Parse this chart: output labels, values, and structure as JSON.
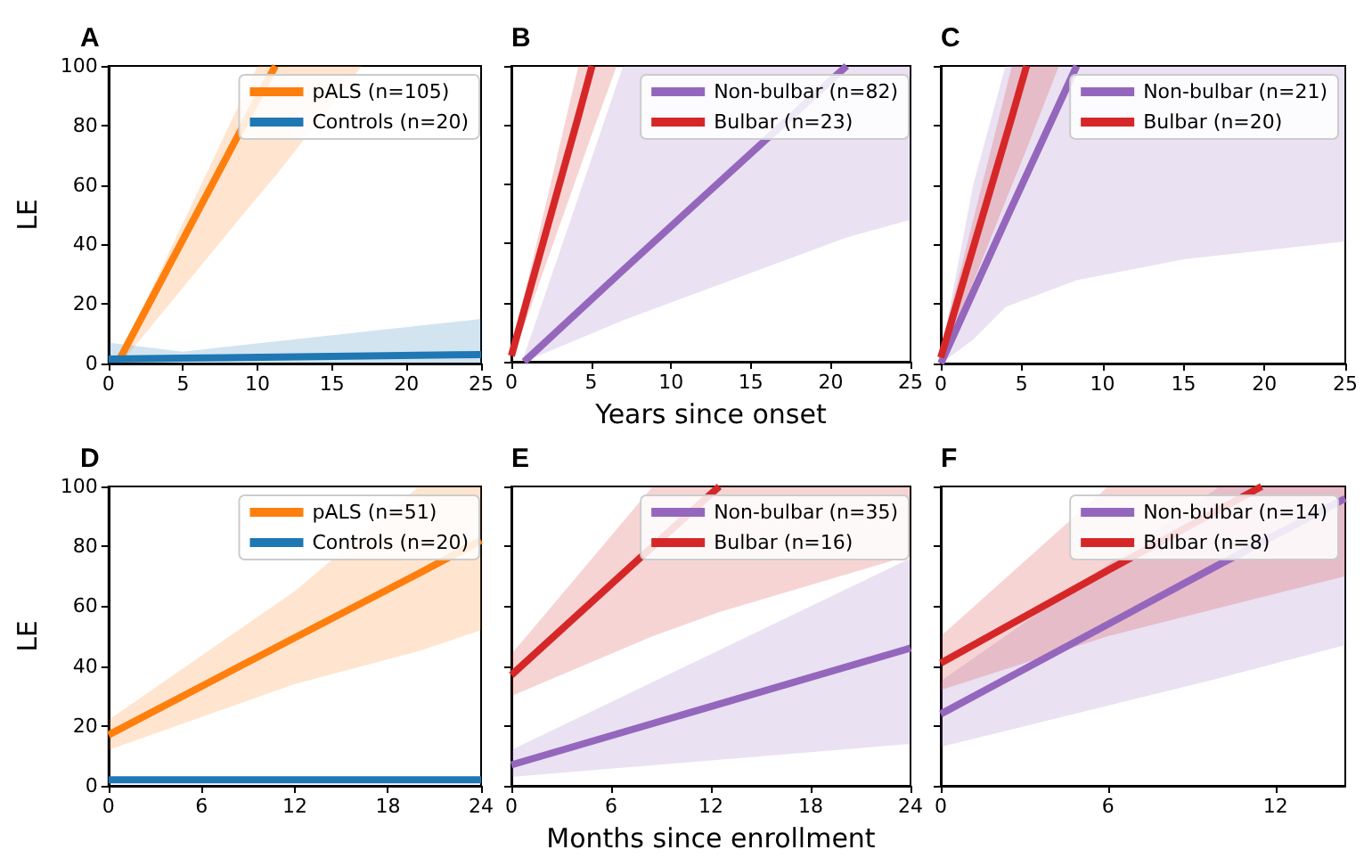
{
  "chart_data": [
    {
      "type": "line",
      "title": "A",
      "ylabel": "LE",
      "xlim": [
        0,
        25
      ],
      "xticks": [
        0,
        5,
        10,
        15,
        20,
        25
      ],
      "ylim": [
        0,
        100
      ],
      "yticks": [
        0,
        20,
        40,
        60,
        80,
        100
      ],
      "legend": "top right",
      "series": [
        {
          "name": "pALS (n=105)",
          "color": "#ff7f0e",
          "x": [
            0.8,
            10,
            11.2,
            17
          ],
          "values": [
            2,
            89,
            100,
            null
          ],
          "lower": [
            0,
            56,
            63,
            100
          ],
          "upper": [
            3,
            100,
            100,
            100
          ]
        },
        {
          "name": "Controls (n=20)",
          "color": "#1f77b4",
          "x": [
            0,
            5,
            25
          ],
          "values": [
            1.5,
            1.8,
            3
          ],
          "lower": [
            0,
            0.5,
            0
          ],
          "upper": [
            7,
            4,
            15
          ]
        }
      ]
    },
    {
      "type": "line",
      "title": "B",
      "xlabel": "Years since onset",
      "xlim": [
        0,
        25
      ],
      "xticks": [
        0,
        5,
        10,
        15,
        20,
        25
      ],
      "ylim": [
        0,
        100
      ],
      "yticks": [
        0,
        20,
        40,
        60,
        80,
        100
      ],
      "tick_labels": "x",
      "legend": "top right",
      "series": [
        {
          "name": "Non-bulbar (n=82)",
          "color": "#9467bd",
          "x": [
            0.8,
            7,
            21,
            25
          ],
          "values": [
            0,
            31,
            100,
            null
          ],
          "lower": [
            0,
            14,
            42,
            48
          ],
          "upper": [
            2,
            100,
            100,
            100
          ]
        },
        {
          "name": "Bulbar (n=23)",
          "color": "#d62728",
          "x": [
            0,
            4.2,
            5.05,
            6.6
          ],
          "values": [
            2,
            83,
            100,
            null
          ],
          "lower": [
            0,
            64,
            77,
            100
          ],
          "upper": [
            4,
            100,
            100,
            100
          ]
        }
      ]
    },
    {
      "type": "line",
      "title": "C",
      "xlim": [
        0,
        25
      ],
      "xticks": [
        0,
        5,
        10,
        15,
        20,
        25
      ],
      "ylim": [
        0,
        100
      ],
      "yticks": [
        0,
        20,
        40,
        60,
        80,
        100
      ],
      "tick_labels": "x",
      "legend": "top right",
      "series": [
        {
          "name": "Non-bulbar (n=21)",
          "color": "#9467bd",
          "x": [
            0,
            2,
            4,
            8.4,
            15,
            25
          ],
          "values": [
            0,
            24,
            48,
            100,
            null,
            null
          ],
          "lower": [
            0,
            8,
            19,
            28,
            35,
            41
          ],
          "upper": [
            3,
            60,
            100,
            100,
            100,
            100
          ]
        },
        {
          "name": "Bulbar (n=20)",
          "color": "#d62728",
          "x": [
            0,
            4.4,
            5.3,
            7.3
          ],
          "values": [
            2,
            83,
            100,
            null
          ],
          "lower": [
            0,
            60,
            72,
            100
          ],
          "upper": [
            5,
            100,
            100,
            100
          ]
        }
      ]
    },
    {
      "type": "line",
      "title": "D",
      "ylabel": "LE",
      "xlim": [
        0,
        24
      ],
      "xticks": [
        0,
        6,
        12,
        18,
        24
      ],
      "ylim": [
        0,
        100
      ],
      "yticks": [
        0,
        20,
        40,
        60,
        80,
        100
      ],
      "legend": "top right",
      "series": [
        {
          "name": "pALS (n=51)",
          "color": "#ff7f0e",
          "x": [
            0,
            12,
            20,
            24
          ],
          "values": [
            17,
            49.5,
            71,
            82
          ],
          "lower": [
            12,
            34,
            45,
            52
          ],
          "upper": [
            22,
            65,
            100,
            100
          ]
        },
        {
          "name": "Controls (n=20)",
          "color": "#1f77b4",
          "x": [
            0,
            24
          ],
          "values": [
            2,
            2
          ]
        }
      ]
    },
    {
      "type": "line",
      "title": "E",
      "xlabel": "Months since enrollment",
      "xlim": [
        0,
        24
      ],
      "xticks": [
        0,
        6,
        12,
        18,
        24
      ],
      "ylim": [
        0,
        100
      ],
      "yticks": [
        0,
        20,
        40,
        60,
        80,
        100
      ],
      "tick_labels": "x",
      "legend": "top right",
      "series": [
        {
          "name": "Non-bulbar (n=35)",
          "color": "#9467bd",
          "x": [
            0,
            24
          ],
          "values": [
            7,
            46
          ],
          "lower": [
            3,
            14
          ],
          "upper": [
            12,
            76
          ]
        },
        {
          "name": "Bulbar (n=16)",
          "color": "#d62728",
          "x": [
            0,
            8.5,
            12.5,
            24
          ],
          "values": [
            37,
            80,
            100,
            null
          ],
          "lower": [
            30,
            50,
            58,
            77
          ],
          "upper": [
            44,
            100,
            100,
            100
          ]
        }
      ]
    },
    {
      "type": "line",
      "title": "F",
      "xlim": [
        0,
        14.5
      ],
      "xticks": [
        0,
        6,
        12
      ],
      "ylim": [
        0,
        100
      ],
      "yticks": [
        0,
        20,
        40,
        60,
        80,
        100
      ],
      "tick_labels": "x",
      "legend": "top right",
      "series": [
        {
          "name": "Non-bulbar (n=14)",
          "color": "#9467bd",
          "x": [
            0,
            10,
            14.5
          ],
          "values": [
            24,
            74,
            96
          ],
          "lower": [
            13,
            36,
            47
          ],
          "upper": [
            35,
            100,
            100
          ]
        },
        {
          "name": "Bulbar (n=8)",
          "color": "#d62728",
          "x": [
            0,
            6,
            11.5,
            14.5
          ],
          "values": [
            41,
            72,
            100,
            null
          ],
          "lower": [
            32,
            50,
            63,
            70
          ],
          "upper": [
            50,
            100,
            100,
            100
          ]
        }
      ]
    }
  ]
}
